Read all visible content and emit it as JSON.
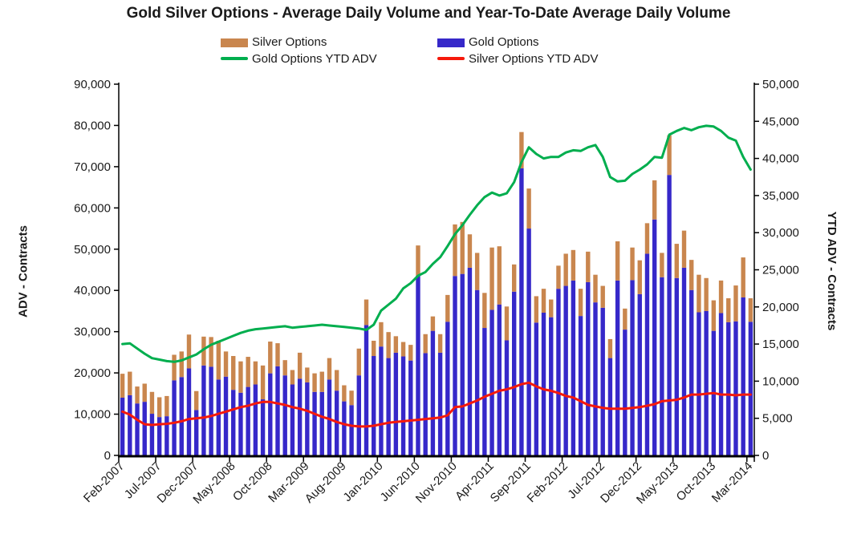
{
  "title": "Gold Silver Options - Average Daily Volume and Year-To-Date Average Daily Volume",
  "legend": {
    "silver_bar_label": "Silver Options",
    "gold_bar_label": "Gold Options",
    "gold_line_label": "Gold Options YTD ADV",
    "silver_line_label": "Silver Options YTD ADV"
  },
  "colors": {
    "gold_bar": "#3628C9",
    "silver_bar": "#C9864E",
    "gold_line": "#00AE4E",
    "silver_line": "#F6190B",
    "axis": "#000000",
    "text": "#1a1a1a"
  },
  "left_axis": {
    "title": "ADV - Contracts",
    "min": 0,
    "max": 90000,
    "step": 10000
  },
  "right_axis": {
    "title": "YTD ADV - Contracts",
    "min": 0,
    "max": 50000,
    "step": 5000
  },
  "chart_data": {
    "type": "bar+line",
    "title": "Gold Silver Options - Average Daily Volume and Year-To-Date Average Daily Volume",
    "xlabel": "",
    "ylabel_left": "ADV - Contracts",
    "ylabel_right": "YTD ADV - Contracts",
    "left_axis_range": [
      0,
      90000
    ],
    "right_axis_range": [
      0,
      50000
    ],
    "grid": false,
    "legend_position": "top",
    "x_tick_label_interval": 5,
    "x_tick_labels_shown": [
      "Feb-2007",
      "Jul-2007",
      "Dec-2007",
      "May-2008",
      "Oct-2008",
      "Mar-2009",
      "Aug-2009",
      "Jan-2010",
      "Jun-2010",
      "Nov-2010",
      "Apr-2011",
      "Sep-2011",
      "Feb-2012",
      "Jul-2012",
      "Dec-2012",
      "May-2013",
      "Oct-2013",
      "Mar-2014"
    ],
    "categories": [
      "Feb-2007",
      "Mar-2007",
      "Apr-2007",
      "May-2007",
      "Jun-2007",
      "Jul-2007",
      "Aug-2007",
      "Sep-2007",
      "Oct-2007",
      "Nov-2007",
      "Dec-2007",
      "Jan-2008",
      "Feb-2008",
      "Mar-2008",
      "Apr-2008",
      "May-2008",
      "Jun-2008",
      "Jul-2008",
      "Aug-2008",
      "Sep-2008",
      "Oct-2008",
      "Nov-2008",
      "Dec-2008",
      "Jan-2009",
      "Feb-2009",
      "Mar-2009",
      "Apr-2009",
      "May-2009",
      "Jun-2009",
      "Jul-2009",
      "Aug-2009",
      "Sep-2009",
      "Oct-2009",
      "Nov-2009",
      "Dec-2009",
      "Jan-2010",
      "Feb-2010",
      "Mar-2010",
      "Apr-2010",
      "May-2010",
      "Jun-2010",
      "Jul-2010",
      "Aug-2010",
      "Sep-2010",
      "Oct-2010",
      "Nov-2010",
      "Dec-2010",
      "Jan-2011",
      "Feb-2011",
      "Mar-2011",
      "Apr-2011",
      "May-2011",
      "Jun-2011",
      "Jul-2011",
      "Aug-2011",
      "Sep-2011",
      "Oct-2011",
      "Nov-2011",
      "Dec-2011",
      "Jan-2012",
      "Feb-2012",
      "Mar-2012",
      "Apr-2012",
      "May-2012",
      "Jun-2012",
      "Jul-2012",
      "Aug-2012",
      "Sep-2012",
      "Oct-2012",
      "Nov-2012",
      "Dec-2012",
      "Jan-2013",
      "Feb-2013",
      "Mar-2013",
      "Apr-2013",
      "May-2013",
      "Jun-2013",
      "Jul-2013",
      "Aug-2013",
      "Sep-2013",
      "Oct-2013",
      "Nov-2013",
      "Dec-2013",
      "Jan-2014",
      "Feb-2014",
      "Mar-2014"
    ],
    "bar_series": [
      {
        "name": "Gold Options",
        "stack_order": 0,
        "axis": "left",
        "color": "#3628C9",
        "values": [
          14000,
          14600,
          12600,
          13000,
          10100,
          9300,
          9500,
          18200,
          19000,
          21100,
          11000,
          21800,
          21500,
          18400,
          19100,
          15900,
          15200,
          16600,
          17200,
          13600,
          19900,
          21600,
          19400,
          17200,
          18600,
          17700,
          15400,
          15400,
          18400,
          15700,
          13100,
          12200,
          19400,
          31600,
          24100,
          26400,
          23600,
          24900,
          24000,
          23000,
          43600,
          24800,
          30200,
          24900,
          32400,
          43500,
          44000,
          45500,
          40100,
          30900,
          35300,
          36600,
          27900,
          39700,
          69600,
          55000,
          32200,
          34600,
          33500,
          40400,
          41100,
          42400,
          33800,
          42000,
          37100,
          35800,
          23600,
          42400,
          30500,
          42500,
          39100,
          48900,
          57200,
          43200,
          68000,
          43000,
          45500,
          40100,
          34700,
          35000,
          30200,
          34500,
          32300,
          32500,
          38300,
          32400
        ]
      },
      {
        "name": "Silver Options",
        "stack_order": 1,
        "axis": "left",
        "color": "#C9864E",
        "values": [
          5800,
          5700,
          4100,
          4400,
          5300,
          4800,
          4900,
          6200,
          6200,
          8200,
          4600,
          7000,
          7200,
          9400,
          6100,
          8200,
          7600,
          7300,
          5600,
          8200,
          7700,
          5600,
          3700,
          3500,
          6300,
          3600,
          4500,
          4900,
          5200,
          5000,
          3900,
          3500,
          6500,
          6200,
          3700,
          5900,
          6300,
          4000,
          3500,
          3800,
          7300,
          4600,
          3500,
          4500,
          6500,
          12500,
          12600,
          8100,
          9000,
          8500,
          15100,
          14100,
          8200,
          6600,
          8800,
          9700,
          6400,
          5800,
          4300,
          5600,
          7800,
          7400,
          6600,
          7400,
          6700,
          5300,
          4600,
          9500,
          5100,
          7900,
          8200,
          7400,
          9500,
          5900,
          9600,
          8300,
          9000,
          7300,
          9100,
          8000,
          7400,
          7900,
          5800,
          8700,
          9700,
          5700
        ]
      }
    ],
    "line_series": [
      {
        "name": "Gold Options YTD ADV",
        "axis": "right",
        "color": "#00AE4E",
        "values": [
          15000,
          15100,
          14400,
          13700,
          13100,
          12900,
          12700,
          12600,
          12800,
          13200,
          13600,
          14300,
          14900,
          15300,
          15700,
          16100,
          16500,
          16800,
          17000,
          17100,
          17200,
          17300,
          17400,
          17200,
          17300,
          17400,
          17500,
          17600,
          17500,
          17400,
          17300,
          17200,
          17100,
          16900,
          17600,
          19500,
          20300,
          21100,
          22500,
          23200,
          24200,
          24700,
          25800,
          26700,
          28200,
          29800,
          31000,
          32400,
          33700,
          34800,
          35400,
          35000,
          35300,
          36800,
          39500,
          41500,
          40600,
          40000,
          40200,
          40200,
          40800,
          41100,
          41000,
          41500,
          41800,
          40200,
          37500,
          36900,
          37000,
          37900,
          38500,
          39200,
          40200,
          40100,
          43200,
          43700,
          44100,
          43800,
          44200,
          44400,
          44300,
          43700,
          42800,
          42400,
          40200,
          38500
        ]
      },
      {
        "name": "Silver Options YTD ADV",
        "axis": "right",
        "color": "#F6190B",
        "values": [
          5900,
          5500,
          4800,
          4200,
          4100,
          4200,
          4250,
          4400,
          4600,
          4900,
          5000,
          5100,
          5300,
          5600,
          5900,
          6200,
          6500,
          6700,
          7000,
          7200,
          7200,
          7000,
          6800,
          6500,
          6300,
          6000,
          5600,
          5200,
          4900,
          4500,
          4200,
          4000,
          3900,
          3900,
          4000,
          4200,
          4400,
          4500,
          4600,
          4700,
          4800,
          4900,
          5000,
          5100,
          5400,
          6500,
          6600,
          7000,
          7400,
          7900,
          8300,
          8700,
          8900,
          9200,
          9600,
          9800,
          9300,
          8900,
          8700,
          8400,
          8000,
          7800,
          7300,
          6800,
          6600,
          6400,
          6300,
          6300,
          6300,
          6400,
          6500,
          6700,
          6900,
          7300,
          7400,
          7500,
          7800,
          8200,
          8200,
          8300,
          8400,
          8200,
          8200,
          8100,
          8200,
          8200
        ]
      }
    ]
  }
}
